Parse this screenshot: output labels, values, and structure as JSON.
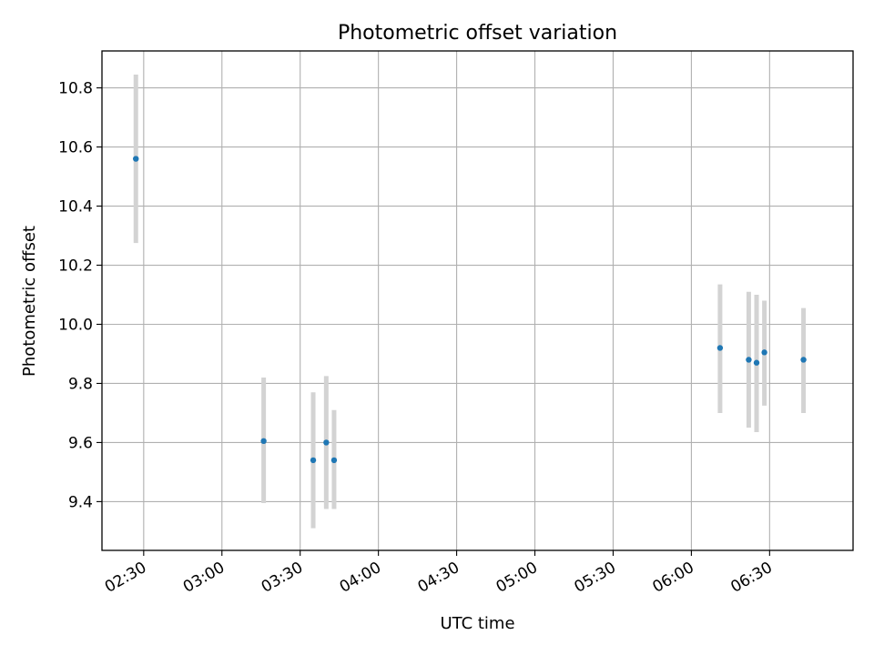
{
  "chart_data": {
    "type": "scatter",
    "title": "Photometric offset variation",
    "xlabel": "UTC time",
    "ylabel": "Photometric offset",
    "x_tick_labels": [
      "02:30",
      "03:00",
      "03:30",
      "04:00",
      "04:30",
      "05:00",
      "05:30",
      "06:00",
      "06:30"
    ],
    "x_ticks": [
      "02:30",
      "03:00",
      "03:30",
      "04:00",
      "04:30",
      "05:00",
      "05:30",
      "06:00",
      "06:30"
    ],
    "y_ticks": [
      9.4,
      9.6,
      9.8,
      10.0,
      10.2,
      10.4,
      10.6,
      10.8
    ],
    "y_tick_labels": [
      "9.4",
      "9.6",
      "9.8",
      "10.0",
      "10.2",
      "10.4",
      "10.6",
      "10.8"
    ],
    "xlim": [
      "02:14",
      "07:02"
    ],
    "ylim": [
      9.235,
      10.925
    ],
    "grid": true,
    "marker_color": "#1f77b4",
    "errorbar_color": "#d3d3d3",
    "points": [
      {
        "x": "02:27",
        "y": 10.56,
        "yerr_low": 10.275,
        "yerr_high": 10.845
      },
      {
        "x": "03:16",
        "y": 9.605,
        "yerr_low": 9.395,
        "yerr_high": 9.82
      },
      {
        "x": "03:35",
        "y": 9.54,
        "yerr_low": 9.31,
        "yerr_high": 9.77
      },
      {
        "x": "03:40",
        "y": 9.6,
        "yerr_low": 9.375,
        "yerr_high": 9.825
      },
      {
        "x": "03:43",
        "y": 9.54,
        "yerr_low": 9.375,
        "yerr_high": 9.71
      },
      {
        "x": "06:11",
        "y": 9.92,
        "yerr_low": 9.7,
        "yerr_high": 10.135
      },
      {
        "x": "06:22",
        "y": 9.88,
        "yerr_low": 9.65,
        "yerr_high": 10.11
      },
      {
        "x": "06:25",
        "y": 9.87,
        "yerr_low": 9.635,
        "yerr_high": 10.1
      },
      {
        "x": "06:28",
        "y": 9.905,
        "yerr_low": 9.725,
        "yerr_high": 10.08
      },
      {
        "x": "06:43",
        "y": 9.88,
        "yerr_low": 9.7,
        "yerr_high": 10.055
      }
    ]
  }
}
